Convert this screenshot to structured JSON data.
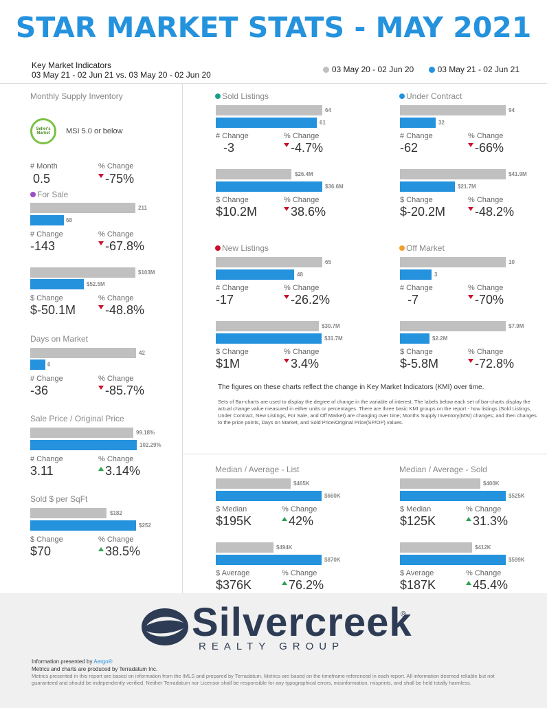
{
  "title": "STAR MARKET STATS - MAY 2021",
  "kmi": {
    "heading": "Key Market Indicators",
    "range": "03 May 21 - 02 Jun 21 vs. 03 May 20 - 02 Jun 20"
  },
  "legend": {
    "prev": "03 May 20 - 02 Jun 20",
    "curr": "03 May 21 - 02 Jun 21"
  },
  "colors": {
    "prev": "#c0c0c0",
    "curr": "#2492dd",
    "down": "#c8102e",
    "up": "#2ea44f"
  },
  "msi": {
    "section": "Monthly Supply Inventory",
    "badge": "Seller's Market",
    "text": "MSI 5.0 or below",
    "l1": "# Month",
    "v1": "0.5",
    "l2": "% Change",
    "v2": "-75%"
  },
  "for_sale": {
    "section": "For Sale",
    "b1": {
      "prev": "211",
      "curr": "68",
      "l1": "# Change",
      "v1": "-143",
      "l2": "% Change",
      "v2": "-67.8%"
    },
    "b2": {
      "prev": "$103M",
      "curr": "$52.5M",
      "l1": "$ Change",
      "v1": "$-50.1M",
      "l2": "% Change",
      "v2": "-48.8%"
    }
  },
  "dom": {
    "section": "Days on Market",
    "prev": "42",
    "curr": "6",
    "l1": "# Change",
    "v1": "-36",
    "l2": "% Change",
    "v2": "-85.7%"
  },
  "spop": {
    "section": "Sale Price / Original Price",
    "prev": "99.18%",
    "curr": "102.29%",
    "l1": "# Change",
    "v1": "3.11",
    "l2": "% Change",
    "v2": "3.14%"
  },
  "sqft": {
    "section": "Sold $ per SqFt",
    "prev": "$182",
    "curr": "$252",
    "l1": "$ Change",
    "v1": "$70",
    "l2": "% Change",
    "v2": "38.5%"
  },
  "sold": {
    "section": "Sold Listings",
    "b1": {
      "prev": "64",
      "curr": "61",
      "l1": "# Change",
      "v1": "-3",
      "l2": "% Change",
      "v2": "-4.7%"
    },
    "b2": {
      "prev": "$26.4M",
      "curr": "$36.6M",
      "l1": "$ Change",
      "v1": "$10.2M",
      "l2": "% Change",
      "v2": "38.6%"
    }
  },
  "uc": {
    "section": "Under Contract",
    "b1": {
      "prev": "94",
      "curr": "32",
      "l1": "# Change",
      "v1": "-62",
      "l2": "% Change",
      "v2": "-66%"
    },
    "b2": {
      "prev": "$41.9M",
      "curr": "$21.7M",
      "l1": "$ Change",
      "v1": "$-20.2M",
      "l2": "% Change",
      "v2": "-48.2%"
    }
  },
  "new": {
    "section": "New Listings",
    "b1": {
      "prev": "65",
      "curr": "48",
      "l1": "# Change",
      "v1": "-17",
      "l2": "% Change",
      "v2": "-26.2%"
    },
    "b2": {
      "prev": "$30.7M",
      "curr": "$31.7M",
      "l1": "$ Change",
      "v1": "$1M",
      "l2": "% Change",
      "v2": "3.4%"
    }
  },
  "off": {
    "section": "Off Market",
    "b1": {
      "prev": "10",
      "curr": "3",
      "l1": "# Change",
      "v1": "-7",
      "l2": "% Change",
      "v2": "-70%"
    },
    "b2": {
      "prev": "$7.9M",
      "curr": "$2.2M",
      "l1": "$ Change",
      "v1": "$-5.8M",
      "l2": "% Change",
      "v2": "-72.8%"
    }
  },
  "notes": {
    "main": "The figures on these charts reflect the change in Key Market Indicators (KMI) over time.",
    "detail": "Sets of Bar-charts are used to display the degree of change in the variable of interest. The labels below each set of bar-charts display the actual change value measured in either units or percentages. There are three basic KMI groups on the report - how listings (Sold Listings, Under Contract, New Listings, For Sale, and Off Market) are changing over time; Months Supply Inventory(MSI) changes; and then changes to the price points, Days on Market, and Sold Price/Original Price(SP/OP) values."
  },
  "list": {
    "section": "Median / Average - List",
    "b1": {
      "prev": "$465K",
      "curr": "$660K",
      "l1": "$ Median",
      "v1": "$195K",
      "l2": "% Change",
      "v2": "42%"
    },
    "b2": {
      "prev": "$494K",
      "curr": "$870K",
      "l1": "$ Average",
      "v1": "$376K",
      "l2": "% Change",
      "v2": "76.2%"
    }
  },
  "soldp": {
    "section": "Median / Average - Sold",
    "b1": {
      "prev": "$400K",
      "curr": "$525K",
      "l1": "$ Median",
      "v1": "$125K",
      "l2": "% Change",
      "v2": "31.3%"
    },
    "b2": {
      "prev": "$412K",
      "curr": "$599K",
      "l1": "$ Average",
      "v1": "$187K",
      "l2": "% Change",
      "v2": "45.4%"
    }
  },
  "footer": {
    "logo_word": "Silvercreek",
    "logo_reg": "®",
    "logo_sub": "REALTY GROUP",
    "presented": "Information presented by",
    "aergo": "Aergo®",
    "produced": "Metrics and charts are produced by Terradatum Inc.",
    "disclaimer": "Metrics presented in this report are based on information from the IMLS and prepared by Terradatum. Metrics are based on the timeframe referenced in each report. All information deemed reliable but not guaranteed and should be independently verified. Neither Terradatum nor Licensor shall be responsible for any typographical errors, misinformation, misprints, and shall be held totally harmless."
  }
}
